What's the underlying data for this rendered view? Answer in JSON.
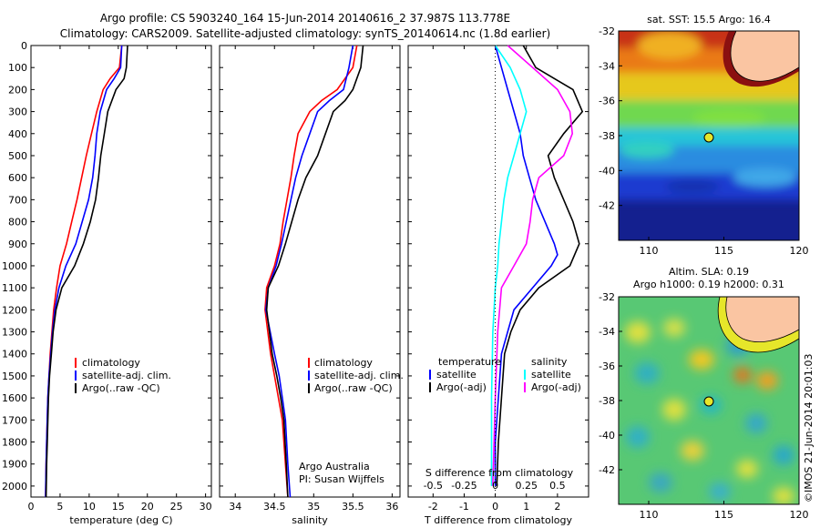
{
  "header": {
    "line1": "Argo profile: CS 5903240_164 15-Jun-2014 20140616_2 37.987S 113.778E",
    "line2": "Climatology: CARS2009. Satellite-adjusted climatology: synTS_20140614.nc (1.8d earlier)"
  },
  "colors": {
    "climatology": "#ff0000",
    "satellite": "#0000ff",
    "argo": "#000000",
    "sat_sal": "#00ffff",
    "argo_adj_sal": "#ff00ff"
  },
  "chart_data": [
    {
      "type": "line",
      "panel": "temperature",
      "xlabel": "temperature (deg C)",
      "xlim": [
        0,
        31
      ],
      "ylim": [
        2050,
        0
      ],
      "xticks": [
        0,
        5,
        10,
        15,
        20,
        25,
        30
      ],
      "yticks": [
        0,
        100,
        200,
        300,
        400,
        500,
        600,
        700,
        800,
        900,
        1000,
        1100,
        1200,
        1300,
        1400,
        1500,
        1600,
        1700,
        1800,
        1900,
        2000
      ],
      "legend": [
        "climatology",
        "satellite-adj. clim.",
        "Argo(..raw -QC)"
      ],
      "series": [
        {
          "name": "climatology",
          "x": [
            15.6,
            15.2,
            13.6,
            12.4,
            11.3,
            10.4,
            9.5,
            8.7,
            7.9,
            7.0,
            6.1,
            5.0,
            4.4,
            3.9,
            3.6,
            3.3,
            3.1,
            2.9,
            2.7,
            2.6,
            2.5
          ],
          "y": [
            0,
            100,
            150,
            200,
            300,
            400,
            500,
            600,
            700,
            800,
            900,
            1000,
            1100,
            1200,
            1300,
            1400,
            1500,
            1600,
            1800,
            1900,
            2050
          ]
        },
        {
          "name": "satellite-adj. clim.",
          "x": [
            15.6,
            15.4,
            14.3,
            13.0,
            11.9,
            11.3,
            11.0,
            10.6,
            9.9,
            8.8,
            7.7,
            6.0,
            4.8,
            4.1,
            3.7,
            3.4,
            3.1,
            2.9,
            2.7,
            2.6,
            2.5
          ],
          "y": [
            0,
            100,
            150,
            200,
            300,
            400,
            500,
            600,
            700,
            800,
            900,
            1000,
            1100,
            1200,
            1300,
            1400,
            1500,
            1600,
            1800,
            1900,
            2050
          ]
        },
        {
          "name": "Argo(..raw -QC)",
          "x": [
            16.6,
            16.4,
            16.0,
            14.6,
            13.2,
            12.6,
            12.0,
            11.6,
            11.1,
            10.2,
            9.0,
            7.5,
            5.3,
            4.3,
            3.8,
            3.5,
            3.2,
            3.0,
            2.8,
            2.7,
            2.6
          ],
          "y": [
            0,
            100,
            150,
            200,
            300,
            400,
            500,
            600,
            700,
            800,
            900,
            1000,
            1100,
            1200,
            1300,
            1400,
            1500,
            1600,
            1800,
            1900,
            2050
          ]
        }
      ]
    },
    {
      "type": "line",
      "panel": "salinity",
      "xlabel": "salinity",
      "xlim": [
        33.8,
        36.1
      ],
      "ylim": [
        2050,
        0
      ],
      "xticks": [
        34,
        34.5,
        35,
        35.5,
        36
      ],
      "legend": [
        "climatology",
        "satellite-adj. clim.",
        "Argo(..raw -QC)"
      ],
      "annotation": [
        "Argo Australia",
        "PI: Susan Wijffels"
      ],
      "series": [
        {
          "name": "climatology",
          "x": [
            35.55,
            35.5,
            35.3,
            35.1,
            34.95,
            34.8,
            34.75,
            34.71,
            34.66,
            34.61,
            34.57,
            34.5,
            34.4,
            34.38,
            34.45,
            34.5,
            34.55,
            34.6,
            34.64,
            34.67
          ],
          "y": [
            0,
            100,
            200,
            250,
            300,
            400,
            500,
            600,
            700,
            800,
            900,
            1000,
            1100,
            1200,
            1400,
            1500,
            1600,
            1700,
            1900,
            2050
          ]
        },
        {
          "name": "satellite-adj. clim.",
          "x": [
            35.5,
            35.45,
            35.38,
            35.2,
            35.05,
            34.95,
            34.85,
            34.77,
            34.71,
            34.65,
            34.59,
            34.52,
            34.42,
            34.39,
            34.5,
            34.56,
            34.6,
            34.64,
            34.67,
            34.7
          ],
          "y": [
            0,
            100,
            200,
            250,
            300,
            400,
            500,
            600,
            700,
            800,
            900,
            1000,
            1100,
            1200,
            1400,
            1500,
            1600,
            1700,
            1900,
            2050
          ]
        },
        {
          "name": "Argo(..raw -QC)",
          "x": [
            35.63,
            35.6,
            35.5,
            35.4,
            35.25,
            35.15,
            35.05,
            34.9,
            34.8,
            34.72,
            34.64,
            34.55,
            34.42,
            34.4,
            34.47,
            34.53,
            34.58,
            34.62,
            34.65,
            34.67
          ],
          "y": [
            0,
            100,
            200,
            250,
            300,
            400,
            500,
            600,
            700,
            800,
            900,
            1000,
            1100,
            1200,
            1400,
            1500,
            1600,
            1700,
            1900,
            2050
          ]
        }
      ]
    },
    {
      "type": "line",
      "panel": "difference",
      "xlabel": "T difference from climatology",
      "xlabel_top": "S difference from climatology",
      "xlim": [
        -2.8,
        3.0
      ],
      "ylim": [
        2050,
        0
      ],
      "xticks": [
        -2,
        -1,
        0,
        1,
        2
      ],
      "xticks_sal": [
        "-0.5",
        "-0.25",
        "0",
        "0.25",
        "0.5"
      ],
      "legend_temperature": {
        "title": "temperature",
        "items": [
          "satellite",
          "Argo(-adj)"
        ]
      },
      "legend_salinity": {
        "title": "salinity",
        "items": [
          "satellite",
          "Argo(-adj)"
        ]
      },
      "series": [
        {
          "name": "satellite",
          "x": [
            0.0,
            0.2,
            0.4,
            0.6,
            0.8,
            0.9,
            1.1,
            1.3,
            1.6,
            1.9,
            2.0,
            1.8,
            1.2,
            0.6,
            0.4,
            0.2,
            0.1,
            0.0,
            0.0
          ],
          "y": [
            0,
            100,
            200,
            300,
            400,
            500,
            600,
            700,
            800,
            900,
            950,
            1000,
            1100,
            1200,
            1300,
            1400,
            1600,
            1800,
            2000
          ]
        },
        {
          "name": "Argo(-adj)",
          "x": [
            0.9,
            1.3,
            1.9,
            2.5,
            2.8,
            2.2,
            1.7,
            1.9,
            2.2,
            2.5,
            2.7,
            2.4,
            1.4,
            0.8,
            0.5,
            0.3,
            0.2,
            0.1,
            0.05
          ],
          "y": [
            0,
            100,
            150,
            200,
            300,
            400,
            500,
            600,
            700,
            800,
            900,
            1000,
            1100,
            1200,
            1300,
            1400,
            1600,
            1800,
            2000
          ]
        },
        {
          "name": "satellite salinity",
          "x": [
            0.0,
            0.12,
            0.2,
            0.25,
            0.2,
            0.15,
            0.1,
            0.07,
            0.05,
            0.03,
            0.02,
            0.0,
            -0.02,
            -0.03,
            -0.03
          ],
          "y": [
            0,
            100,
            200,
            300,
            400,
            500,
            600,
            700,
            800,
            900,
            1000,
            1100,
            1300,
            1600,
            2000
          ]
        },
        {
          "name": "Argo(-adj) salinity",
          "x": [
            0.1,
            0.3,
            0.5,
            0.6,
            0.62,
            0.55,
            0.35,
            0.3,
            0.28,
            0.25,
            0.15,
            0.05,
            0.02,
            0.0,
            -0.02
          ],
          "y": [
            0,
            100,
            200,
            300,
            400,
            500,
            600,
            700,
            800,
            900,
            1000,
            1100,
            1300,
            1600,
            2000
          ]
        }
      ]
    },
    {
      "type": "heatmap",
      "panel": "sst_map",
      "title": "sat. SST: 15.5  Argo: 16.4",
      "xlim": [
        108,
        120
      ],
      "ylim": [
        -44,
        -32
      ],
      "xticks": [
        110,
        115,
        120
      ],
      "yticks": [
        -32,
        -34,
        -36,
        -38,
        -40,
        -42
      ],
      "point": {
        "lon": 113.778,
        "lat": -37.987
      }
    },
    {
      "type": "heatmap",
      "panel": "sla_map",
      "title": "Altim. SLA: 0.19",
      "subtitle": "Argo h1000: 0.19  h2000: 0.31",
      "xlim": [
        108,
        120
      ],
      "ylim": [
        -44,
        -32
      ],
      "xticks": [
        110,
        115,
        120
      ],
      "yticks": [
        -32,
        -34,
        -36,
        -38,
        -40,
        -42
      ],
      "point": {
        "lon": 113.778,
        "lat": -37.987
      }
    }
  ],
  "side_label": "©IMOS 21-Jun-2014 20:01:03"
}
